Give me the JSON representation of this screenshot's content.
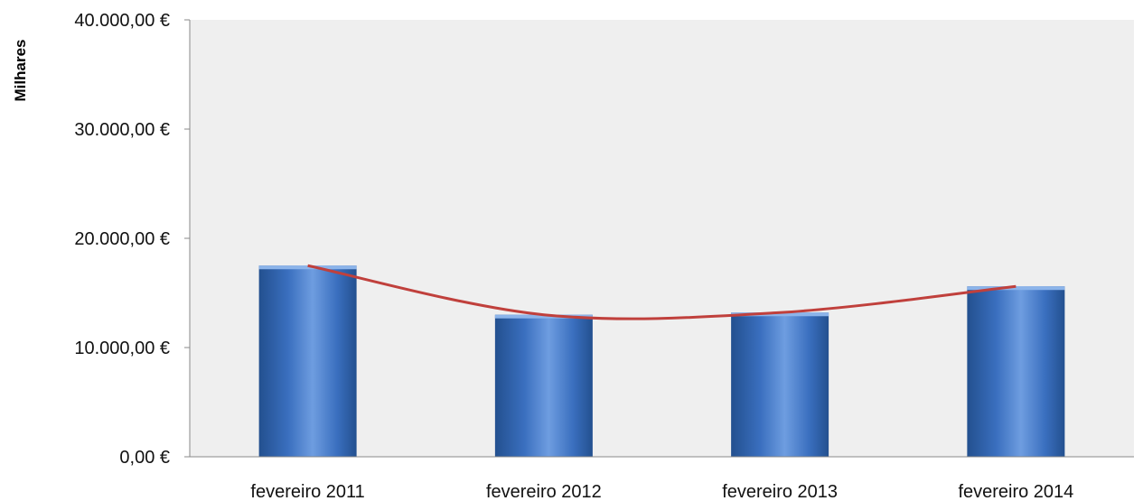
{
  "chart_data": {
    "type": "bar",
    "title": "",
    "xlabel": "",
    "ylabel": "Milhares",
    "categories": [
      "fevereiro 2011",
      "fevereiro 2012",
      "fevereiro 2013",
      "fevereiro 2014"
    ],
    "series": [
      {
        "values": [
          17500,
          13000,
          13200,
          15600
        ]
      }
    ],
    "trendline": {
      "type": "polynomial",
      "values": [
        17500,
        13000,
        13200,
        15600
      ]
    },
    "ylim": [
      0,
      40000
    ],
    "y_ticks": [
      0,
      10000,
      20000,
      30000,
      40000
    ],
    "y_tick_labels": [
      "0,00 €",
      "10.000,00 €",
      "20.000,00 €",
      "30.000,00 €",
      "40.000,00 €"
    ],
    "grid": false,
    "legend": "none",
    "colors": {
      "bar": "#3a6fbf",
      "bar_light": "#6e9de0",
      "bar_dark": "#23508f",
      "trendline": "#c0403c",
      "plot_background": "#efefef",
      "axis": "#888888"
    }
  }
}
